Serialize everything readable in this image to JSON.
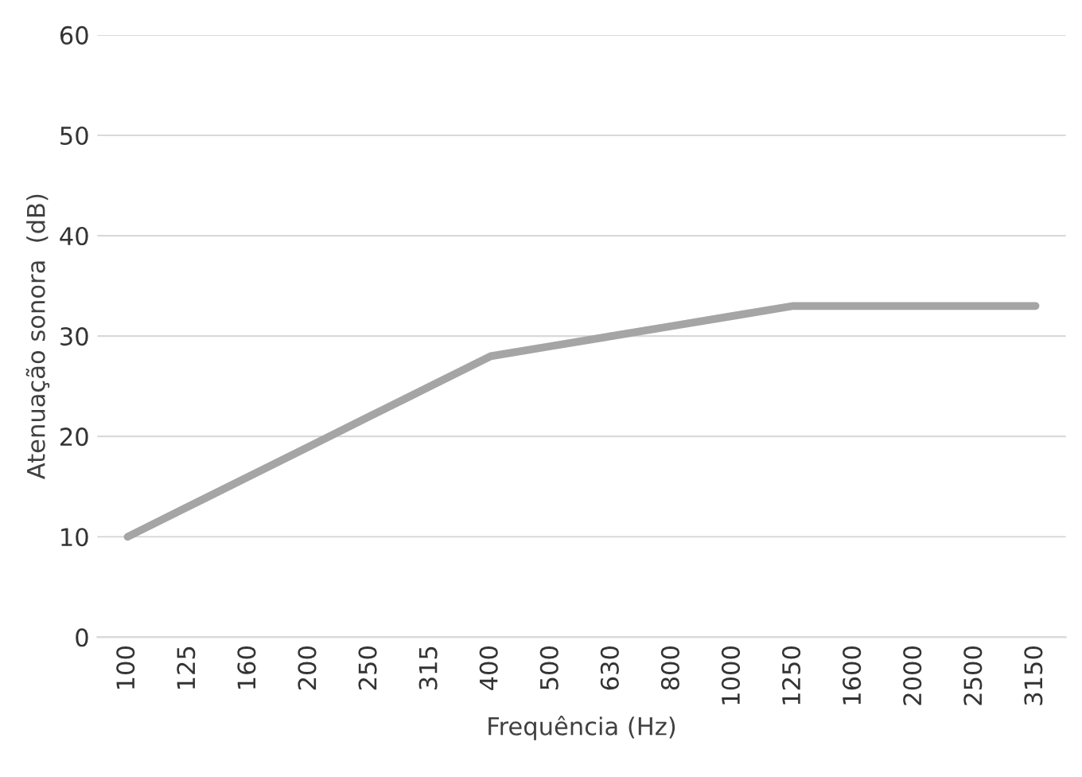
{
  "chart_data": {
    "type": "line",
    "xlabel": "Frequência (Hz)",
    "ylabel": "Atenuação sonora  (dB)",
    "categories": [
      "100",
      "125",
      "160",
      "200",
      "250",
      "315",
      "400",
      "500",
      "630",
      "800",
      "1000",
      "1250",
      "1600",
      "2000",
      "2500",
      "3150"
    ],
    "series": [
      {
        "color": "#a5a5a5",
        "values": [
          10,
          13,
          16,
          19,
          22,
          25,
          28,
          29,
          30,
          31,
          32,
          33,
          33,
          33,
          33,
          33
        ]
      }
    ],
    "ylim": [
      0,
      60
    ],
    "yticks": [
      0,
      10,
      20,
      30,
      40,
      50,
      60
    ],
    "grid": "y",
    "marker": "none",
    "line_style": "solid"
  }
}
